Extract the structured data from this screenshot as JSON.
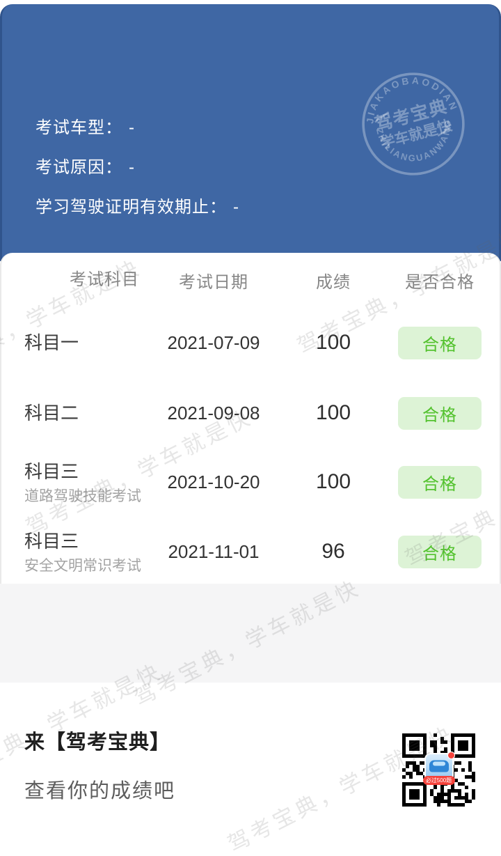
{
  "info_panel": {
    "fields": [
      {
        "label": "考试车型：",
        "value": "-"
      },
      {
        "label": "考试原因：",
        "value": "-"
      },
      {
        "label": "学习驾驶证明有效期止：",
        "value": "-"
      }
    ],
    "stamp": {
      "arc_top": "JIAKAOBAODIAN",
      "arc_bottom": "ZHILIANGUANWANG",
      "line1": "驾考宝典",
      "line2": "学车就是快"
    }
  },
  "results_table": {
    "headers": [
      "考试科目",
      "考试日期",
      "成绩",
      "是否合格"
    ],
    "rows": [
      {
        "subject": "科目一",
        "subtitle": "",
        "date": "2021-07-09",
        "score": "100",
        "status": "合格"
      },
      {
        "subject": "科目二",
        "subtitle": "",
        "date": "2021-09-08",
        "score": "100",
        "status": "合格"
      },
      {
        "subject": "科目三",
        "subtitle": "道路驾驶技能考试",
        "date": "2021-10-20",
        "score": "100",
        "status": "合格"
      },
      {
        "subject": "科目三",
        "subtitle": "安全文明常识考试",
        "date": "2021-11-01",
        "score": "96",
        "status": "合格"
      }
    ]
  },
  "footer": {
    "title": "来【驾考宝典】",
    "subtitle": "查看你的成绩吧",
    "qr_icon_ribbon": "必过500题"
  },
  "watermark": {
    "text": "驾考宝典，学车就是快"
  },
  "colors": {
    "primary_blue": "#3f67a4",
    "badge_bg": "#ddf3d6",
    "badge_text": "#53c22e",
    "gray_band": "#f5f5f6"
  }
}
